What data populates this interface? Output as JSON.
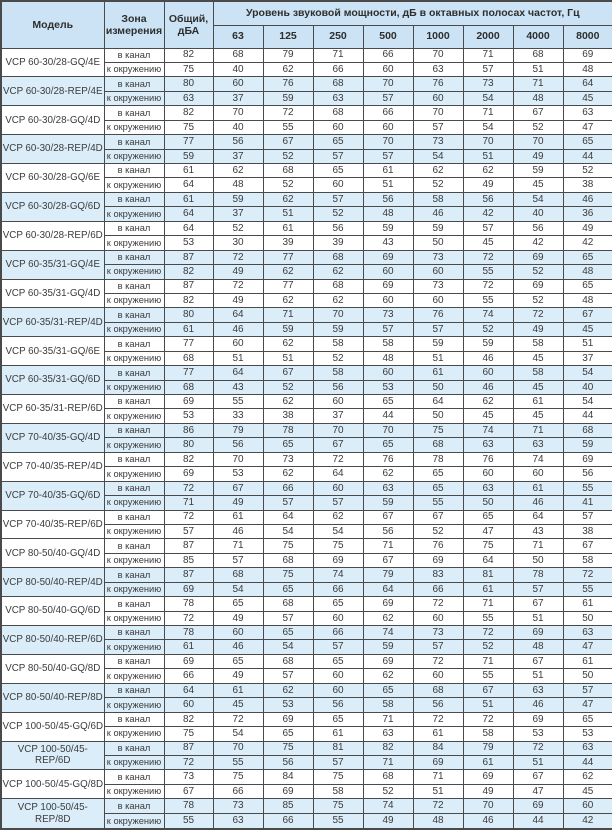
{
  "table": {
    "headers": {
      "model": "Модель",
      "zone": "Зона измерения",
      "total": "Общий, дБА",
      "group": "Уровень звуковой мощности, дБ в октавных полосах частот, Гц",
      "frequencies": [
        "63",
        "125",
        "250",
        "500",
        "1000",
        "2000",
        "4000",
        "8000"
      ]
    },
    "zone_labels": {
      "duct": "в канал",
      "ambient": "к окружению"
    },
    "colors": {
      "header_bg": "#cbe3f4",
      "shaded_row_bg": "#dbedf9",
      "border": "#4a4a4a",
      "text": "#3b3b3b"
    },
    "rows": [
      {
        "model": "VCP 60-30/28-GQ/4E",
        "shaded": false,
        "duct": {
          "total": 82,
          "levels": [
            68,
            79,
            71,
            66,
            70,
            71,
            68,
            69
          ]
        },
        "ambient": {
          "total": 75,
          "levels": [
            40,
            62,
            66,
            60,
            63,
            57,
            51,
            48
          ]
        }
      },
      {
        "model": "VCP 60-30/28-REP/4E",
        "shaded": true,
        "duct": {
          "total": 80,
          "levels": [
            60,
            76,
            68,
            70,
            76,
            73,
            71,
            64
          ]
        },
        "ambient": {
          "total": 63,
          "levels": [
            37,
            59,
            63,
            57,
            60,
            54,
            48,
            45
          ]
        }
      },
      {
        "model": "VCP 60-30/28-GQ/4D",
        "shaded": false,
        "duct": {
          "total": 82,
          "levels": [
            70,
            72,
            68,
            66,
            70,
            71,
            67,
            63
          ]
        },
        "ambient": {
          "total": 75,
          "levels": [
            40,
            55,
            60,
            60,
            57,
            54,
            52,
            47
          ]
        }
      },
      {
        "model": "VCP 60-30/28-REP/4D",
        "shaded": true,
        "duct": {
          "total": 77,
          "levels": [
            56,
            67,
            65,
            70,
            73,
            70,
            70,
            65
          ]
        },
        "ambient": {
          "total": 59,
          "levels": [
            37,
            52,
            57,
            57,
            54,
            51,
            49,
            44
          ]
        }
      },
      {
        "model": "VCP 60-30/28-GQ/6E",
        "shaded": false,
        "duct": {
          "total": 61,
          "levels": [
            62,
            68,
            65,
            61,
            62,
            62,
            59,
            52
          ]
        },
        "ambient": {
          "total": 64,
          "levels": [
            48,
            52,
            60,
            51,
            52,
            49,
            45,
            38
          ]
        }
      },
      {
        "model": "VCP 60-30/28-GQ/6D",
        "shaded": true,
        "duct": {
          "total": 61,
          "levels": [
            59,
            62,
            57,
            56,
            58,
            56,
            54,
            46
          ]
        },
        "ambient": {
          "total": 64,
          "levels": [
            37,
            51,
            52,
            48,
            46,
            42,
            40,
            36
          ]
        }
      },
      {
        "model": "VCP 60-30/28-REP/6D",
        "shaded": false,
        "duct": {
          "total": 64,
          "levels": [
            52,
            61,
            56,
            59,
            59,
            57,
            56,
            49
          ]
        },
        "ambient": {
          "total": 53,
          "levels": [
            30,
            39,
            39,
            43,
            50,
            45,
            42,
            42
          ]
        }
      },
      {
        "model": "VCP 60-35/31-GQ/4E",
        "shaded": true,
        "duct": {
          "total": 87,
          "levels": [
            72,
            77,
            68,
            69,
            73,
            72,
            69,
            65
          ]
        },
        "ambient": {
          "total": 82,
          "levels": [
            49,
            62,
            62,
            60,
            60,
            55,
            52,
            48
          ]
        }
      },
      {
        "model": "VCP 60-35/31-GQ/4D",
        "shaded": false,
        "duct": {
          "total": 87,
          "levels": [
            72,
            77,
            68,
            69,
            73,
            72,
            69,
            65
          ]
        },
        "ambient": {
          "total": 82,
          "levels": [
            49,
            62,
            62,
            60,
            60,
            55,
            52,
            48
          ]
        }
      },
      {
        "model": "VCP 60-35/31-REP/4D",
        "shaded": true,
        "duct": {
          "total": 80,
          "levels": [
            64,
            71,
            70,
            73,
            76,
            74,
            72,
            67
          ]
        },
        "ambient": {
          "total": 61,
          "levels": [
            46,
            59,
            59,
            57,
            57,
            52,
            49,
            45
          ]
        }
      },
      {
        "model": "VCP 60-35/31-GQ/6E",
        "shaded": false,
        "duct": {
          "total": 77,
          "levels": [
            60,
            62,
            58,
            58,
            59,
            59,
            58,
            51
          ]
        },
        "ambient": {
          "total": 68,
          "levels": [
            51,
            51,
            52,
            48,
            51,
            46,
            45,
            37
          ]
        }
      },
      {
        "model": "VCP 60-35/31-GQ/6D",
        "shaded": true,
        "duct": {
          "total": 77,
          "levels": [
            64,
            67,
            58,
            60,
            61,
            60,
            58,
            54
          ]
        },
        "ambient": {
          "total": 68,
          "levels": [
            43,
            52,
            56,
            53,
            50,
            46,
            45,
            40
          ]
        }
      },
      {
        "model": "VCP 60-35/31-REP/6D",
        "shaded": false,
        "duct": {
          "total": 69,
          "levels": [
            55,
            62,
            60,
            65,
            64,
            62,
            61,
            54
          ]
        },
        "ambient": {
          "total": 53,
          "levels": [
            33,
            38,
            37,
            44,
            50,
            45,
            45,
            44
          ]
        }
      },
      {
        "model": "VCP 70-40/35-GQ/4D",
        "shaded": true,
        "duct": {
          "total": 86,
          "levels": [
            79,
            78,
            70,
            70,
            75,
            74,
            71,
            68
          ]
        },
        "ambient": {
          "total": 80,
          "levels": [
            56,
            65,
            67,
            65,
            68,
            63,
            63,
            59
          ]
        }
      },
      {
        "model": "VCP 70-40/35-REP/4D",
        "shaded": false,
        "duct": {
          "total": 82,
          "levels": [
            70,
            73,
            72,
            76,
            78,
            76,
            74,
            69
          ]
        },
        "ambient": {
          "total": 69,
          "levels": [
            53,
            62,
            64,
            62,
            65,
            60,
            60,
            56
          ]
        }
      },
      {
        "model": "VCP 70-40/35-GQ/6D",
        "shaded": true,
        "duct": {
          "total": 72,
          "levels": [
            67,
            66,
            60,
            63,
            65,
            63,
            61,
            55
          ]
        },
        "ambient": {
          "total": 71,
          "levels": [
            49,
            57,
            57,
            59,
            55,
            50,
            46,
            41
          ]
        }
      },
      {
        "model": "VCP 70-40/35-REP/6D",
        "shaded": false,
        "duct": {
          "total": 72,
          "levels": [
            61,
            64,
            62,
            67,
            67,
            65,
            64,
            57
          ]
        },
        "ambient": {
          "total": 57,
          "levels": [
            46,
            54,
            54,
            56,
            52,
            47,
            43,
            38
          ]
        }
      },
      {
        "model": "VCP 80-50/40-GQ/4D",
        "shaded": false,
        "duct": {
          "total": 87,
          "levels": [
            71,
            75,
            75,
            71,
            76,
            75,
            71,
            67
          ]
        },
        "ambient": {
          "total": 85,
          "levels": [
            57,
            68,
            69,
            67,
            69,
            64,
            50,
            58
          ]
        }
      },
      {
        "model": "VCP 80-50/40-REP/4D",
        "shaded": true,
        "duct": {
          "total": 87,
          "levels": [
            68,
            75,
            74,
            79,
            83,
            81,
            78,
            72
          ]
        },
        "ambient": {
          "total": 69,
          "levels": [
            54,
            65,
            66,
            64,
            66,
            61,
            57,
            55
          ]
        }
      },
      {
        "model": "VCP 80-50/40-GQ/6D",
        "shaded": false,
        "duct": {
          "total": 78,
          "levels": [
            65,
            68,
            65,
            69,
            72,
            71,
            67,
            61
          ]
        },
        "ambient": {
          "total": 72,
          "levels": [
            49,
            57,
            60,
            62,
            60,
            55,
            51,
            50
          ]
        }
      },
      {
        "model": "VCP 80-50/40-REP/6D",
        "shaded": true,
        "duct": {
          "total": 78,
          "levels": [
            60,
            65,
            66,
            74,
            73,
            72,
            69,
            63
          ]
        },
        "ambient": {
          "total": 61,
          "levels": [
            46,
            54,
            57,
            59,
            57,
            52,
            48,
            47
          ]
        }
      },
      {
        "model": "VCP 80-50/40-GQ/8D",
        "shaded": false,
        "duct": {
          "total": 69,
          "levels": [
            65,
            68,
            65,
            69,
            72,
            71,
            67,
            61
          ]
        },
        "ambient": {
          "total": 66,
          "levels": [
            49,
            57,
            60,
            62,
            60,
            55,
            51,
            50
          ]
        }
      },
      {
        "model": "VCP 80-50/40-REP/8D",
        "shaded": true,
        "duct": {
          "total": 64,
          "levels": [
            61,
            62,
            60,
            65,
            68,
            67,
            63,
            57
          ]
        },
        "ambient": {
          "total": 60,
          "levels": [
            45,
            53,
            56,
            58,
            56,
            51,
            46,
            47
          ]
        }
      },
      {
        "model": "VCP 100-50/45-GQ/6D",
        "shaded": false,
        "duct": {
          "total": 82,
          "levels": [
            72,
            69,
            65,
            71,
            72,
            72,
            69,
            65
          ]
        },
        "ambient": {
          "total": 75,
          "levels": [
            54,
            65,
            61,
            63,
            61,
            58,
            53,
            53
          ]
        }
      },
      {
        "model": "VCP 100-50/45-REP/6D",
        "shaded": true,
        "duct": {
          "total": 87,
          "levels": [
            70,
            75,
            81,
            82,
            84,
            79,
            72,
            63
          ]
        },
        "ambient": {
          "total": 72,
          "levels": [
            55,
            56,
            57,
            71,
            69,
            61,
            51,
            44
          ]
        }
      },
      {
        "model": "VCP 100-50/45-GQ/8D",
        "shaded": false,
        "duct": {
          "total": 73,
          "levels": [
            75,
            84,
            75,
            68,
            71,
            69,
            67,
            62
          ]
        },
        "ambient": {
          "total": 67,
          "levels": [
            66,
            69,
            58,
            52,
            51,
            49,
            47,
            45
          ]
        }
      },
      {
        "model": "VCP 100-50/45-REP/8D",
        "shaded": true,
        "duct": {
          "total": 78,
          "levels": [
            73,
            85,
            75,
            74,
            72,
            70,
            69,
            60
          ]
        },
        "ambient": {
          "total": 55,
          "levels": [
            63,
            66,
            55,
            49,
            48,
            46,
            44,
            42
          ]
        }
      }
    ]
  }
}
